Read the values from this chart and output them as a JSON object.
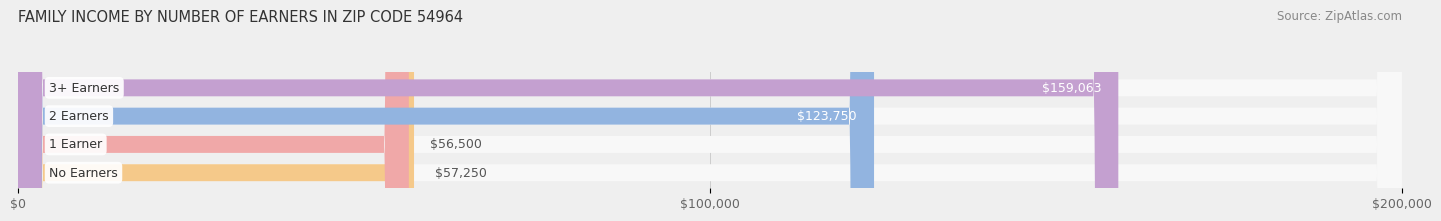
{
  "title": "FAMILY INCOME BY NUMBER OF EARNERS IN ZIP CODE 54964",
  "source": "Source: ZipAtlas.com",
  "categories": [
    "No Earners",
    "1 Earner",
    "2 Earners",
    "3+ Earners"
  ],
  "values": [
    57250,
    56500,
    123750,
    159063
  ],
  "bar_colors": [
    "#f5c98a",
    "#f0a8a8",
    "#92b4e0",
    "#c4a0d0"
  ],
  "label_colors": [
    "#555555",
    "#555555",
    "#ffffff",
    "#ffffff"
  ],
  "value_labels": [
    "$57,250",
    "$56,500",
    "$123,750",
    "$159,063"
  ],
  "xlim": [
    0,
    200000
  ],
  "xtick_values": [
    0,
    100000,
    200000
  ],
  "xtick_labels": [
    "$0",
    "$100,000",
    "$200,000"
  ],
  "background_color": "#efefef",
  "bar_bg_color": "#f8f8f8",
  "title_fontsize": 10.5,
  "source_fontsize": 8.5,
  "label_fontsize": 9,
  "value_fontsize": 9,
  "tick_fontsize": 9
}
